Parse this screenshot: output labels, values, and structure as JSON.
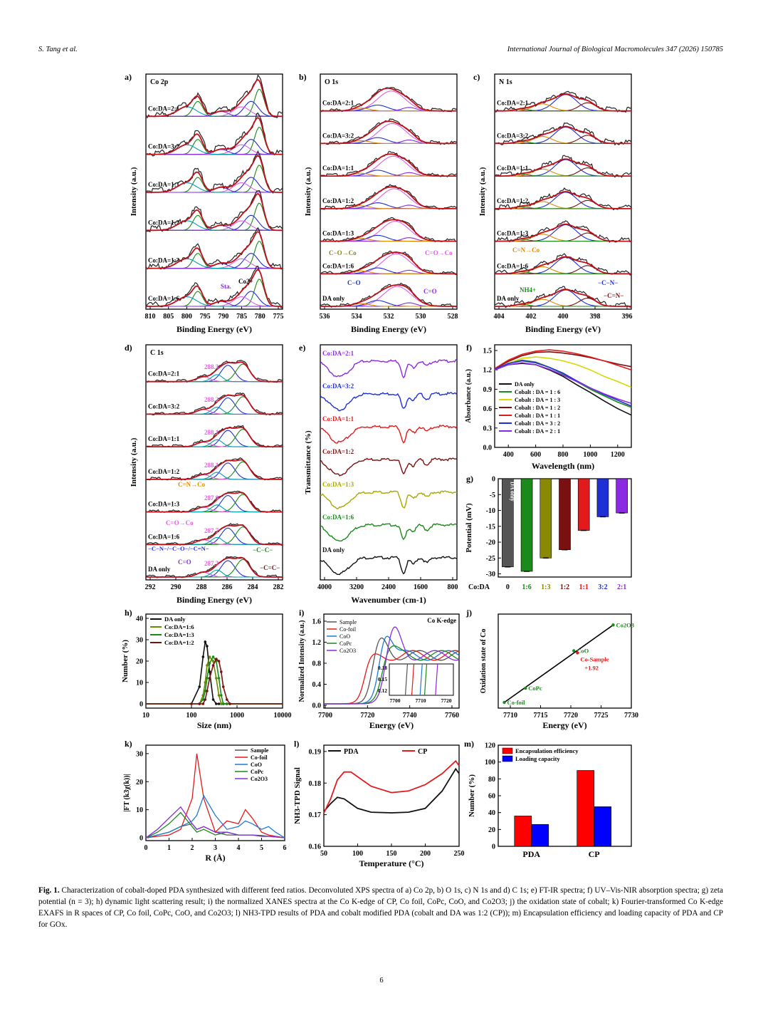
{
  "header": {
    "left": "S. Tang et al.",
    "right": "International Journal of Biological Macromolecules 347 (2026) 150785"
  },
  "panels": {
    "a": {
      "letter": "a)",
      "title": "Co 2p",
      "ylabel": "Intensity (a.u.)",
      "xlabel": "Binding Energy (eV)",
      "xticks": [
        "810",
        "805",
        "800",
        "795",
        "790",
        "785",
        "780",
        "775"
      ],
      "samples": [
        "Co:DA=2:1",
        "Co:DA=3:2",
        "Co:DA=1:1",
        "Co:DA=1:2",
        "Co:DA=1:3",
        "Co:DA=1:6"
      ],
      "annotations": [
        "Sta.",
        "Co2+"
      ]
    },
    "b": {
      "letter": "b)",
      "title": "O 1s",
      "ylabel": "Intensity (a.u.)",
      "xlabel": "Binding Energy (eV)",
      "xticks": [
        "536",
        "534",
        "532",
        "530",
        "528"
      ],
      "samples": [
        "Co:DA=2:1",
        "Co:DA=3:2",
        "Co:DA=1:1",
        "Co:DA=1:2",
        "Co:DA=1:3",
        "Co:DA=1:6",
        "DA only"
      ],
      "annotations": [
        "C−O→Co",
        "C=O→Co",
        "C−O",
        "C=O"
      ]
    },
    "c": {
      "letter": "c)",
      "title": "N 1s",
      "ylabel": "Intensity (a.u.)",
      "xlabel": "Binding Energy (eV)",
      "xticks": [
        "404",
        "402",
        "400",
        "398",
        "396"
      ],
      "samples": [
        "Co:DA=2:1",
        "Co:DA=3:2",
        "Co:DA=1:1",
        "Co:DA=1:2",
        "Co:DA=1:3",
        "Co:DA=1:6",
        "DA only"
      ],
      "annotations": [
        "C=N→Co",
        "NH4+",
        "−C−N−",
        "−C=N−"
      ]
    },
    "d": {
      "letter": "d)",
      "title": "C 1s",
      "ylabel": "Intensity (a.u.)",
      "xlabel": "Binding Energy (eV)",
      "xticks": [
        "292",
        "290",
        "288",
        "286",
        "284",
        "282"
      ],
      "samples": [
        "Co:DA=2:1",
        "Co:DA=3:2",
        "Co:DA=1:1",
        "Co:DA=1:2",
        "Co:DA=1:3",
        "Co:DA=1:6",
        "DA only"
      ],
      "peak_labels": [
        "288.3",
        "288.2",
        "288.1",
        "288.1",
        "287.9",
        "287.7",
        "287.3"
      ],
      "annotations": [
        "C=N→Co",
        "C=O→Co",
        "−C−N−/−C−O−/−C=N−",
        "−C−C−",
        "C=O",
        "−C=C−"
      ]
    },
    "e": {
      "letter": "e)",
      "ylabel": "Transmittance (%)",
      "xlabel": "Wavenumber (cm-1)",
      "xticks": [
        "4000",
        "3200",
        "2400",
        "1600",
        "800"
      ],
      "samples": [
        "Co:DA=2:1",
        "Co:DA=3:2",
        "Co:DA=1:1",
        "Co:DA=1:2",
        "Co:DA=1:3",
        "Co:DA=1:6",
        "DA only"
      ]
    },
    "f": {
      "letter": "f)",
      "ylabel": "Absorbance (a.u.)",
      "xlabel": "Wavelength (nm)",
      "xticks": [
        "400",
        "600",
        "800",
        "1000",
        "1200"
      ],
      "yticks": [
        "0.0",
        "0.3",
        "0.6",
        "0.9",
        "1.2",
        "1.5"
      ],
      "legend": [
        "DA only",
        "Cobalt : DA = 1 : 6",
        "Cobalt : DA = 1 : 3",
        "Cobalt : DA = 1 : 2",
        "Cobalt : DA = 1 : 1",
        "Cobalt : DA = 3 : 2",
        "Cobalt : DA = 2 : 1"
      ]
    },
    "g": {
      "letter": "g)",
      "ylabel": "Potential (mV)",
      "xlabel": "Co:DA",
      "yticks": [
        "0",
        "-5",
        "-10",
        "-15",
        "-20",
        "-25",
        "-30"
      ],
      "inbar_label": "DA only"
    },
    "h": {
      "letter": "h)",
      "ylabel": "Number (%)",
      "xlabel": "Size (nm)",
      "xticks": [
        "10",
        "100",
        "1000",
        "10000"
      ],
      "yticks": [
        "0",
        "10",
        "20",
        "30",
        "40"
      ],
      "legend": [
        "DA only",
        "Co:DA=1:6",
        "Co:DA=1:3",
        "Co:DA=1:2"
      ]
    },
    "i": {
      "letter": "i)",
      "ylabel": "Normalized Intensity (a.u.)",
      "xlabel": "Energy (eV)",
      "title": "Co K-edge",
      "xticks": [
        "7700",
        "7720",
        "7740",
        "7760"
      ],
      "yticks": [
        "0.0",
        "0.4",
        "0.8",
        "1.2",
        "1.6"
      ],
      "legend": [
        "Sample",
        "Co-foil",
        "CoO",
        "CoPc",
        "Co2O3"
      ],
      "inset_xticks": [
        "7700",
        "7710",
        "7720"
      ],
      "inset_yticks": [
        "0.12",
        "0.15",
        "0.18"
      ]
    },
    "j": {
      "letter": "j)",
      "ylabel": "Oxidation state of Co",
      "xlabel": "Energy (eV)",
      "xticks": [
        "7710",
        "7715",
        "7720",
        "7725",
        "7730"
      ],
      "points": [
        "Co-foil",
        "CoPc",
        "CoO",
        "Co2O3",
        "Co-Sample"
      ],
      "sample_value": "+1.92"
    },
    "k": {
      "letter": "k)",
      "ylabel": "|FT (k3χ(k))|",
      "xlabel": "R (Å)",
      "xticks": [
        "0",
        "1",
        "2",
        "3",
        "4",
        "5",
        "6"
      ],
      "yticks": [
        "0",
        "10",
        "20",
        "30"
      ],
      "legend": [
        "Sample",
        "Co-foil",
        "CoO",
        "CoPc",
        "Co2O3"
      ]
    },
    "l": {
      "letter": "l)",
      "ylabel": "NH3-TPD Signal",
      "xlabel": "Temperature (°C)",
      "xticks": [
        "50",
        "100",
        "150",
        "200",
        "250"
      ],
      "yticks": [
        "0.16",
        "0.17",
        "0.18",
        "0.19"
      ],
      "legend": [
        "PDA",
        "CP"
      ]
    },
    "m": {
      "letter": "m)",
      "ylabel": "Number (%)",
      "yticks": [
        "0",
        "20",
        "40",
        "60",
        "80",
        "100",
        "120"
      ],
      "legend": [
        "Encapsulation efficiency",
        "Loading capacity"
      ]
    }
  },
  "colors": {
    "red": "#e31a1c",
    "blue": "#1f2fd6",
    "green": "#1a8a1a",
    "olive": "#a8a800",
    "maroon": "#7a1010",
    "purple": "#8a2be2",
    "black": "#111111",
    "pink": "#e060e0",
    "orange": "#e08a00"
  },
  "chart_data": [
    {
      "type": "bar",
      "panel": "g",
      "categories": [
        "0",
        "1:6",
        "1:3",
        "1:2",
        "1:1",
        "3:2",
        "2:1"
      ],
      "values": [
        -27.8,
        -29.2,
        -25.0,
        -22.4,
        -16.3,
        -12.0,
        -10.8
      ],
      "ylim": [
        -30,
        0
      ],
      "ylabel": "Potential (mV)",
      "xlabel": "Co:DA"
    },
    {
      "type": "bar",
      "panel": "m",
      "categories": [
        "PDA",
        "CP"
      ],
      "series": [
        {
          "name": "Encapsulation efficiency",
          "values": [
            36,
            90
          ]
        },
        {
          "name": "Loading capacity",
          "values": [
            26,
            47
          ]
        }
      ],
      "ylim": [
        0,
        120
      ],
      "ylabel": "Number (%)"
    },
    {
      "type": "line",
      "panel": "l",
      "x": [
        50,
        60,
        70,
        80,
        90,
        100,
        120,
        150,
        175,
        200,
        225,
        245,
        250
      ],
      "series": [
        {
          "name": "PDA",
          "values": [
            0.171,
            0.1735,
            0.1755,
            0.175,
            0.1735,
            0.172,
            0.1708,
            0.1706,
            0.1708,
            0.172,
            0.1775,
            0.1845,
            0.183
          ]
        },
        {
          "name": "CP",
          "values": [
            0.1705,
            0.175,
            0.181,
            0.1835,
            0.1835,
            0.182,
            0.179,
            0.177,
            0.1775,
            0.1795,
            0.183,
            0.187,
            0.1855
          ]
        }
      ],
      "xlim": [
        50,
        250
      ],
      "ylim": [
        0.16,
        0.19
      ],
      "xlabel": "Temperature (°C)",
      "ylabel": "NH3-TPD Signal"
    },
    {
      "type": "scatter",
      "panel": "j",
      "x": [
        7709,
        7712.5,
        7720.5,
        7727,
        7721.1
      ],
      "y": [
        0,
        0.55,
        2,
        3,
        1.92
      ],
      "labels": [
        "Co-foil",
        "CoPc",
        "CoO",
        "Co2O3",
        "Co-Sample"
      ],
      "xlim": [
        7708,
        7730
      ],
      "xlabel": "Energy (eV)",
      "ylabel": "Oxidation state of Co"
    },
    {
      "type": "line",
      "panel": "f",
      "x": [
        300,
        400,
        500,
        600,
        700,
        800,
        900,
        1000,
        1100,
        1200,
        1300
      ],
      "series": [
        {
          "name": "DA only",
          "values": [
            1.2,
            1.28,
            1.3,
            1.28,
            1.2,
            1.1,
            0.97,
            0.85,
            0.72,
            0.6,
            0.5
          ]
        },
        {
          "name": "Cobalt : DA = 1 : 6",
          "values": [
            1.2,
            1.3,
            1.35,
            1.32,
            1.24,
            1.14,
            1.02,
            0.9,
            0.8,
            0.7,
            0.62
          ]
        },
        {
          "name": "Cobalt : DA = 1 : 3",
          "values": [
            1.2,
            1.3,
            1.38,
            1.4,
            1.38,
            1.34,
            1.28,
            1.2,
            1.1,
            1.02,
            0.93
          ]
        },
        {
          "name": "Cobalt : DA = 1 : 2",
          "values": [
            1.22,
            1.33,
            1.42,
            1.47,
            1.48,
            1.46,
            1.43,
            1.39,
            1.34,
            1.29,
            1.25
          ]
        },
        {
          "name": "Cobalt : DA = 1 : 1",
          "values": [
            1.22,
            1.35,
            1.44,
            1.49,
            1.51,
            1.49,
            1.45,
            1.4,
            1.34,
            1.27,
            1.2
          ]
        },
        {
          "name": "Cobalt : DA = 3 : 2",
          "values": [
            1.21,
            1.3,
            1.34,
            1.31,
            1.24,
            1.15,
            1.03,
            0.92,
            0.82,
            0.73,
            0.64
          ]
        },
        {
          "name": "Cobalt : DA = 2 : 1",
          "values": [
            1.2,
            1.28,
            1.31,
            1.28,
            1.21,
            1.12,
            1.02,
            0.92,
            0.83,
            0.75,
            0.68
          ]
        }
      ],
      "xlim": [
        300,
        1300
      ],
      "ylim": [
        0,
        1.5
      ],
      "xlabel": "Wavelength (nm)",
      "ylabel": "Absorbance (a.u.)"
    },
    {
      "type": "line",
      "panel": "h",
      "x": [
        100,
        150,
        180,
        200,
        220,
        250,
        300,
        350,
        400,
        450,
        500,
        600,
        700
      ],
      "series": [
        {
          "name": "DA only",
          "values": [
            0,
            8,
            22,
            29,
            27,
            15,
            2,
            0,
            0,
            0,
            0,
            0,
            0
          ]
        },
        {
          "name": "Co:DA=1:6",
          "values": [
            0,
            0,
            4,
            10,
            18,
            22,
            20,
            12,
            4,
            0,
            0,
            0,
            0
          ]
        },
        {
          "name": "Co:DA=1:3",
          "values": [
            0,
            0,
            2,
            6,
            12,
            19,
            22,
            20,
            12,
            4,
            0,
            0,
            0
          ]
        },
        {
          "name": "Co:DA=1:2",
          "values": [
            0,
            0,
            0,
            2,
            6,
            12,
            18,
            21,
            20,
            15,
            8,
            2,
            0
          ]
        }
      ],
      "xlim": [
        10,
        10000
      ],
      "ylim": [
        0,
        40
      ],
      "xscale": "log",
      "xlabel": "Size (nm)",
      "ylabel": "Number (%)"
    },
    {
      "type": "line",
      "panel": "k",
      "x": [
        0,
        0.5,
        1,
        1.5,
        2,
        2.2,
        2.5,
        3,
        3.5,
        4,
        4.3,
        4.6,
        5,
        5.3,
        5.6,
        6
      ],
      "series": [
        {
          "name": "Sample",
          "values": [
            0,
            1,
            2,
            4,
            5,
            3,
            4,
            2,
            1,
            1,
            1,
            1,
            0.8,
            0.5,
            0.5,
            0
          ]
        },
        {
          "name": "Co-foil",
          "values": [
            0,
            0.5,
            1,
            3,
            14,
            30,
            14,
            2,
            6,
            5,
            10,
            7,
            2,
            1,
            0.5,
            0
          ]
        },
        {
          "name": "CoO",
          "values": [
            0,
            1,
            2,
            4,
            6,
            8,
            15,
            8,
            3,
            4,
            6,
            5,
            3,
            4,
            2,
            0
          ]
        },
        {
          "name": "CoPc",
          "values": [
            0,
            2,
            5,
            9,
            4,
            2,
            3,
            1,
            2,
            1,
            1,
            1,
            0.5,
            0.5,
            0.3,
            0
          ]
        },
        {
          "name": "Co2O3",
          "values": [
            0,
            3,
            7,
            11,
            5,
            3,
            4,
            2,
            2,
            1,
            1,
            1,
            0.5,
            0.5,
            0.3,
            0
          ]
        }
      ],
      "xlim": [
        0,
        6
      ],
      "ylim": [
        0,
        32
      ],
      "xlabel": "R (Å)",
      "ylabel": "|FT (k3χ(k))|"
    }
  ],
  "caption": {
    "label": "Fig. 1.",
    "text": " Characterization of cobalt-doped PDA synthesized with different feed ratios. Deconvoluted XPS spectra of a) Co 2p, b) O 1s, c) N 1s and d) C 1s; e) FT-IR spectra; f) UV–Vis-NIR absorption spectra; g) zeta potential (n = 3); h) dynamic light scattering result; i) the normalized XANES spectra at the Co K-edge of CP, Co foil, CoPc, CoO, and Co2O3; j) the oxidation state of cobalt; k) Fourier-transformed Co K-edge EXAFS in R spaces of CP, Co foil, CoPc, CoO, and Co2O3; l) NH3-TPD results of PDA and cobalt modified PDA (cobalt and DA was 1:2 (CP)); m) Encapsulation efficiency and loading capacity of PDA and CP for GOx."
  },
  "page_number": "6"
}
